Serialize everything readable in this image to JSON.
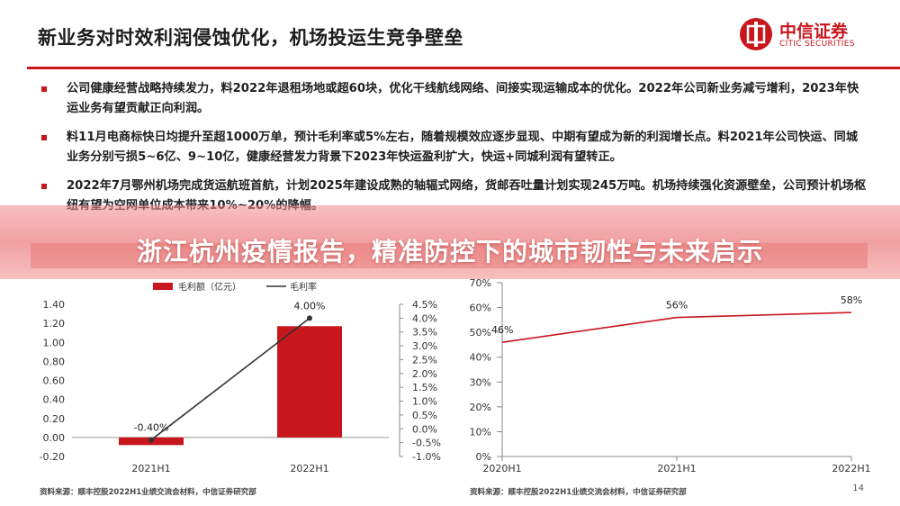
{
  "slide": {
    "title": "新业务对时效利润侵蚀优化，机场投运生竞争壁垒",
    "logo_cn": "中信证券",
    "logo_en": "CITIC SECURITIES",
    "page_number": "14",
    "accent": "#c8161d"
  },
  "bullets": [
    "公司健康经营战略持续发力，料2022年退租场地或超60块，优化干线航线网络、间接实现运输成本的优化。2022年公司新业务减亏增利，2023年快运业务有望贡献正向利润。",
    "料11月电商标快日均提升至超1000万单，预计毛利率或5%左右，随着规模效应逐步显现、中期有望成为新的利润增长点。料2021年公司快运、同城业务分别亏损5~6亿、9~10亿，健康经营发力背景下2023年快运盈利扩大，快运+同城利润有望转正。",
    "2022年7月鄂州机场完成货运航班首航，计划2025年建设成熟的轴辐式网络，货邮吞吐量计划实现245万吨。机场持续强化资源壁垒，公司预计机场枢纽有望为空网单位成本带来10%~20%的降幅。"
  ],
  "banner": {
    "text": "浙江杭州疫情报告，精准防控下的城市韧性与未来启示"
  },
  "chart_data": [
    {
      "type": "bar",
      "categories": [
        "2021H1",
        "2022H1"
      ],
      "series": [
        {
          "name": "毛利额（亿元）",
          "type": "bar",
          "axis": "left",
          "values": [
            -0.08,
            1.17
          ],
          "color": "#c8161d"
        },
        {
          "name": "毛利率",
          "type": "line",
          "axis": "right",
          "values": [
            -0.4,
            4.0
          ],
          "color": "#333333"
        }
      ],
      "data_labels": [
        "-0.40%",
        "4.00%"
      ],
      "left_axis": {
        "ylim": [
          -0.2,
          1.4
        ],
        "ticks": [
          "-0.20",
          "0.00",
          "0.20",
          "0.40",
          "0.60",
          "0.80",
          "1.00",
          "1.20",
          "1.40"
        ]
      },
      "right_axis": {
        "ylim": [
          -1.0,
          4.5
        ],
        "ticks": [
          "-1.0%",
          "-0.5%",
          "0.0%",
          "0.5%",
          "1.0%",
          "1.5%",
          "2.0%",
          "2.5%",
          "3.0%",
          "3.5%",
          "4.0%",
          "4.5%"
        ]
      },
      "legend_position": "top",
      "source": "资料来源：顺丰控股2022H1业绩交流会材料，中信证券研究部"
    },
    {
      "type": "line",
      "categories": [
        "2020H1",
        "2021H1",
        "2022H1"
      ],
      "series": [
        {
          "values": [
            46,
            56,
            58
          ],
          "color": "#c8161d"
        }
      ],
      "data_labels": [
        "46%",
        "56%",
        "58%"
      ],
      "ylim": [
        0,
        70
      ],
      "ticks": [
        "0%",
        "10%",
        "20%",
        "30%",
        "40%",
        "50%",
        "60%",
        "70%"
      ],
      "source": "资料来源：顺丰控股2022H1业绩交流会材料，中信证券研究部"
    }
  ]
}
